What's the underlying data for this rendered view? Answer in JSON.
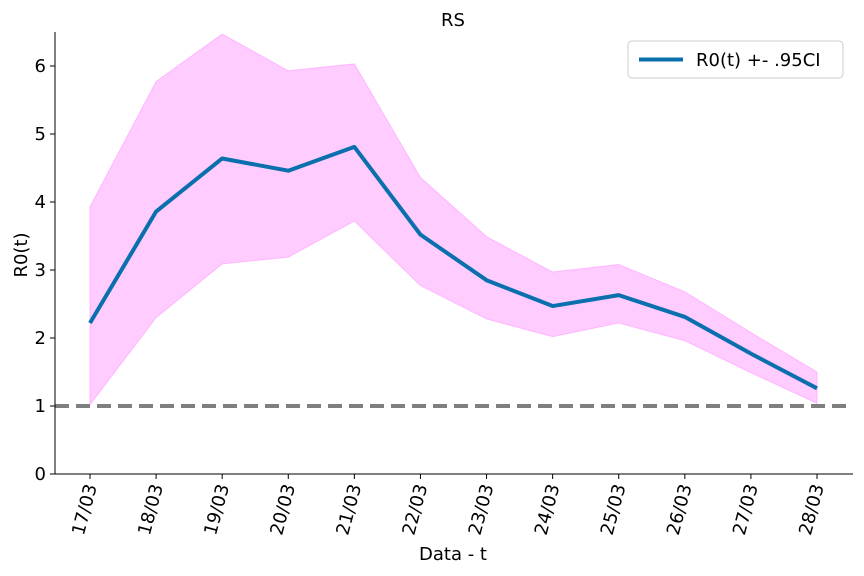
{
  "chart_data": {
    "type": "line",
    "title": "RS",
    "xlabel": "Data - t",
    "ylabel": "R0(t)",
    "categories": [
      "17/03",
      "18/03",
      "19/03",
      "20/03",
      "21/03",
      "22/03",
      "23/03",
      "24/03",
      "25/03",
      "26/03",
      "27/03",
      "28/03"
    ],
    "series": [
      {
        "name": "R0(t) +- .95CI",
        "values": [
          2.22,
          3.86,
          4.64,
          4.46,
          4.81,
          3.52,
          2.85,
          2.47,
          2.63,
          2.31,
          1.77,
          1.26
        ],
        "ci_lower": [
          1.02,
          2.3,
          3.09,
          3.19,
          3.72,
          2.77,
          2.28,
          2.02,
          2.22,
          1.96,
          1.49,
          1.04
        ],
        "ci_upper": [
          3.93,
          5.77,
          6.47,
          5.93,
          6.03,
          4.36,
          3.49,
          2.97,
          3.08,
          2.68,
          2.08,
          1.5
        ],
        "color": "#0a6fad",
        "ci_color": "#ff99ff"
      }
    ],
    "reference_line": {
      "y": 1,
      "color": "#7f7f7f",
      "style": "dashed"
    },
    "yticks": [
      "0",
      "1",
      "2",
      "3",
      "4",
      "5",
      "6"
    ],
    "ylim": [
      0,
      6.5
    ],
    "grid": false,
    "legend_position": "top-right"
  }
}
